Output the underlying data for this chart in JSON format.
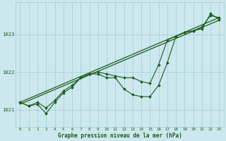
{
  "xlabel": "Graphe pression niveau de la mer (hPa)",
  "bg_color": "#cce8ee",
  "grid_color": "#9ecdd6",
  "line_color": "#1a5c1a",
  "xlim": [
    -0.5,
    23.5
  ],
  "ylim": [
    1020.55,
    1023.85
  ],
  "yticks": [
    1021,
    1022,
    1023
  ],
  "xticks": [
    0,
    1,
    2,
    3,
    4,
    5,
    6,
    7,
    8,
    9,
    10,
    11,
    12,
    13,
    14,
    15,
    16,
    17,
    18,
    19,
    20,
    21,
    22,
    23
  ],
  "series_jagged": {
    "x": [
      0,
      1,
      2,
      3,
      4,
      5,
      6,
      7,
      8,
      9,
      10,
      11,
      12,
      13,
      14,
      15,
      16,
      17,
      18,
      19,
      20,
      21,
      22,
      23
    ],
    "y": [
      1021.2,
      1021.1,
      1021.15,
      1020.9,
      1021.2,
      1021.45,
      1021.6,
      1021.85,
      1021.95,
      1021.95,
      1021.85,
      1021.85,
      1021.55,
      1021.4,
      1021.35,
      1021.35,
      1021.65,
      1022.25,
      1022.95,
      1023.05,
      1023.1,
      1023.15,
      1023.55,
      1023.4
    ]
  },
  "series_upper": {
    "x": [
      0,
      1,
      2,
      3,
      4,
      5,
      6,
      7,
      8,
      9,
      10,
      11,
      12,
      13,
      14,
      15,
      16,
      17,
      18,
      19,
      20,
      21,
      22,
      23
    ],
    "y": [
      1021.2,
      1021.1,
      1021.2,
      1021.05,
      1021.25,
      1021.5,
      1021.65,
      1021.85,
      1021.95,
      1022.0,
      1021.95,
      1021.9,
      1021.85,
      1021.85,
      1021.75,
      1021.7,
      1022.2,
      1022.85,
      1022.95,
      1023.05,
      1023.1,
      1023.2,
      1023.5,
      1023.45
    ]
  },
  "trend1_x": [
    0,
    23
  ],
  "trend1_y": [
    1021.2,
    1023.45
  ],
  "trend2_x": [
    0,
    23
  ],
  "trend2_y": [
    1021.15,
    1023.38
  ]
}
